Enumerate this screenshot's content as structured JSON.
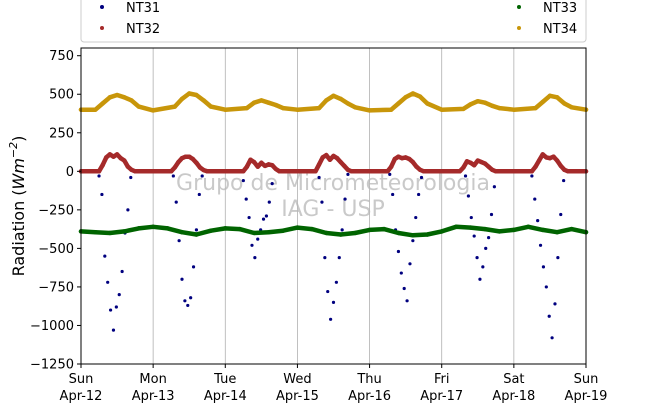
{
  "chart_data": {
    "type": "scatter",
    "watermark": [
      "Grupo de Micrometeorologia",
      "IAG - USP"
    ],
    "ylabel_main": "Radiation (",
    "ylabel_unit_base": "Wm",
    "ylabel_unit_exp": "−2",
    "ylabel_close": ")",
    "ylim": [
      -1250,
      800
    ],
    "yticks": [
      -1250,
      -1000,
      -750,
      -500,
      -250,
      0,
      250,
      500,
      750
    ],
    "ytick_labels": [
      "−1250",
      "−1000",
      "−750",
      "−500",
      "−250",
      "0",
      "250",
      "500",
      "750"
    ],
    "xlim": [
      0,
      7
    ],
    "xticks": [
      {
        "pos": 0,
        "day": "Sun",
        "date": "Apr-12"
      },
      {
        "pos": 1,
        "day": "Mon",
        "date": "Apr-13"
      },
      {
        "pos": 2,
        "day": "Tue",
        "date": "Apr-14"
      },
      {
        "pos": 3,
        "day": "Wed",
        "date": "Apr-15"
      },
      {
        "pos": 4,
        "day": "Thu",
        "date": "Apr-16"
      },
      {
        "pos": 5,
        "day": "Fri",
        "date": "Apr-17"
      },
      {
        "pos": 6,
        "day": "Sat",
        "date": "Apr-18"
      },
      {
        "pos": 7,
        "day": "Sun",
        "date": "Apr-19"
      }
    ],
    "grid": "vertical",
    "legend_position": "top",
    "series": [
      {
        "name": "NT31",
        "color": "#00007f",
        "style": "scattered-dots",
        "x": [
          0.25,
          0.29,
          0.33,
          0.37,
          0.41,
          0.45,
          0.49,
          0.53,
          0.57,
          0.61,
          0.65,
          0.69,
          1.28,
          1.32,
          1.36,
          1.4,
          1.44,
          1.48,
          1.52,
          1.56,
          1.6,
          1.64,
          1.68,
          2.25,
          2.29,
          2.33,
          2.37,
          2.41,
          2.45,
          2.49,
          2.53,
          2.57,
          2.61,
          2.65,
          3.3,
          3.34,
          3.38,
          3.42,
          3.46,
          3.5,
          3.54,
          3.58,
          3.62,
          3.66,
          3.7,
          4.28,
          4.32,
          4.36,
          4.4,
          4.44,
          4.48,
          4.52,
          4.56,
          4.6,
          4.64,
          4.68,
          4.72,
          5.33,
          5.37,
          5.41,
          5.45,
          5.49,
          5.53,
          5.57,
          5.61,
          5.65,
          5.69,
          5.73,
          6.25,
          6.29,
          6.33,
          6.37,
          6.41,
          6.45,
          6.49,
          6.53,
          6.57,
          6.61,
          6.65,
          6.69
        ],
        "y": [
          -30,
          -150,
          -550,
          -720,
          -900,
          -1030,
          -880,
          -800,
          -650,
          -400,
          -250,
          -40,
          -30,
          -200,
          -450,
          -700,
          -840,
          -870,
          -820,
          -620,
          -380,
          -150,
          -30,
          -60,
          -180,
          -300,
          -480,
          -560,
          -440,
          -380,
          -310,
          -290,
          -200,
          -80,
          -40,
          -200,
          -560,
          -780,
          -960,
          -850,
          -720,
          -560,
          -380,
          -180,
          -20,
          -20,
          -150,
          -380,
          -520,
          -660,
          -760,
          -840,
          -600,
          -450,
          -300,
          -150,
          -40,
          -30,
          -160,
          -300,
          -420,
          -560,
          -700,
          -620,
          -500,
          -430,
          -280,
          -100,
          -30,
          -180,
          -320,
          -480,
          -620,
          -750,
          -940,
          -1080,
          -860,
          -560,
          -280,
          -60
        ]
      },
      {
        "name": "NT32",
        "color": "#a52a2a",
        "style": "dense-line",
        "x": [
          0,
          0.25,
          0.3,
          0.35,
          0.4,
          0.45,
          0.5,
          0.55,
          0.6,
          0.65,
          0.7,
          0.75,
          1,
          1.25,
          1.3,
          1.35,
          1.4,
          1.45,
          1.5,
          1.55,
          1.6,
          1.65,
          1.7,
          1.75,
          2,
          2.25,
          2.3,
          2.35,
          2.4,
          2.45,
          2.5,
          2.55,
          2.6,
          2.65,
          2.7,
          2.75,
          3,
          3.25,
          3.3,
          3.35,
          3.4,
          3.45,
          3.5,
          3.55,
          3.6,
          3.65,
          3.7,
          3.75,
          4,
          4.25,
          4.3,
          4.35,
          4.4,
          4.45,
          4.5,
          4.55,
          4.6,
          4.65,
          4.7,
          4.75,
          5,
          5.25,
          5.3,
          5.35,
          5.4,
          5.45,
          5.5,
          5.55,
          5.6,
          5.65,
          5.7,
          5.75,
          6,
          6.25,
          6.3,
          6.35,
          6.4,
          6.45,
          6.5,
          6.55,
          6.6,
          6.65,
          6.7,
          6.75,
          7
        ],
        "y": [
          0,
          0,
          40,
          90,
          110,
          95,
          110,
          85,
          70,
          30,
          10,
          0,
          0,
          0,
          25,
          60,
          85,
          95,
          95,
          80,
          55,
          25,
          8,
          0,
          0,
          0,
          30,
          75,
          60,
          30,
          55,
          35,
          45,
          40,
          15,
          0,
          0,
          0,
          45,
          90,
          105,
          75,
          100,
          85,
          60,
          35,
          10,
          0,
          0,
          0,
          30,
          80,
          95,
          85,
          90,
          80,
          60,
          30,
          10,
          0,
          0,
          0,
          25,
          65,
          55,
          40,
          70,
          60,
          50,
          30,
          10,
          0,
          0,
          0,
          30,
          70,
          110,
          90,
          85,
          95,
          70,
          35,
          10,
          0,
          0
        ]
      },
      {
        "name": "NT33",
        "color": "#006400",
        "style": "dense-line",
        "x": [
          0,
          0.2,
          0.4,
          0.6,
          0.8,
          1,
          1.2,
          1.4,
          1.6,
          1.8,
          2,
          2.2,
          2.4,
          2.6,
          2.8,
          3,
          3.2,
          3.4,
          3.6,
          3.8,
          4,
          4.2,
          4.4,
          4.6,
          4.8,
          5,
          5.2,
          5.4,
          5.6,
          5.8,
          6,
          6.2,
          6.4,
          6.6,
          6.8,
          7
        ],
        "y": [
          -390,
          -395,
          -400,
          -390,
          -370,
          -360,
          -370,
          -395,
          -410,
          -385,
          -370,
          -375,
          -400,
          -395,
          -385,
          -365,
          -375,
          -400,
          -410,
          -400,
          -380,
          -375,
          -400,
          -415,
          -410,
          -390,
          -360,
          -365,
          -375,
          -390,
          -380,
          -360,
          -380,
          -395,
          -375,
          -395
        ]
      },
      {
        "name": "NT34",
        "color": "#c8960a",
        "style": "dense-line",
        "x": [
          0,
          0.2,
          0.3,
          0.4,
          0.5,
          0.6,
          0.7,
          0.8,
          1,
          1.3,
          1.4,
          1.5,
          1.6,
          1.7,
          1.8,
          2,
          2.3,
          2.4,
          2.5,
          2.6,
          2.7,
          2.8,
          3,
          3.3,
          3.4,
          3.5,
          3.6,
          3.7,
          3.8,
          4,
          4.3,
          4.4,
          4.5,
          4.6,
          4.7,
          4.8,
          5,
          5.3,
          5.4,
          5.5,
          5.6,
          5.7,
          5.8,
          6,
          6.3,
          6.4,
          6.5,
          6.6,
          6.7,
          6.8,
          7
        ],
        "y": [
          400,
          400,
          440,
          480,
          495,
          480,
          460,
          420,
          395,
          420,
          470,
          505,
          495,
          460,
          420,
          400,
          410,
          445,
          460,
          445,
          430,
          410,
          400,
          410,
          460,
          490,
          470,
          440,
          415,
          395,
          400,
          440,
          480,
          505,
          485,
          440,
          400,
          405,
          435,
          455,
          445,
          425,
          410,
          400,
          410,
          450,
          490,
          480,
          440,
          415,
          400
        ]
      }
    ]
  }
}
